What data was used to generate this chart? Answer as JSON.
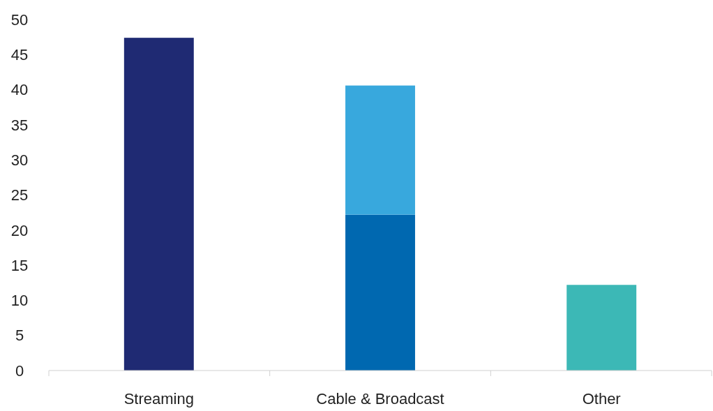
{
  "chart_data": {
    "type": "bar",
    "stacked": true,
    "categories": [
      "Streaming",
      "Cable & Broadcast",
      "Other"
    ],
    "series": [
      {
        "color": "#1f2a73",
        "values": [
          47.4,
          null,
          null
        ]
      },
      {
        "color": "#0068b0",
        "values": [
          null,
          22.2,
          null
        ]
      },
      {
        "color": "#38a8dd",
        "values": [
          null,
          18.4,
          null
        ]
      },
      {
        "color": "#3cb8b6",
        "values": [
          null,
          null,
          12.2
        ]
      }
    ],
    "ylim": [
      0,
      50
    ],
    "yticks": [
      0,
      5,
      10,
      15,
      20,
      25,
      30,
      35,
      40,
      45,
      50
    ],
    "grid": false
  }
}
